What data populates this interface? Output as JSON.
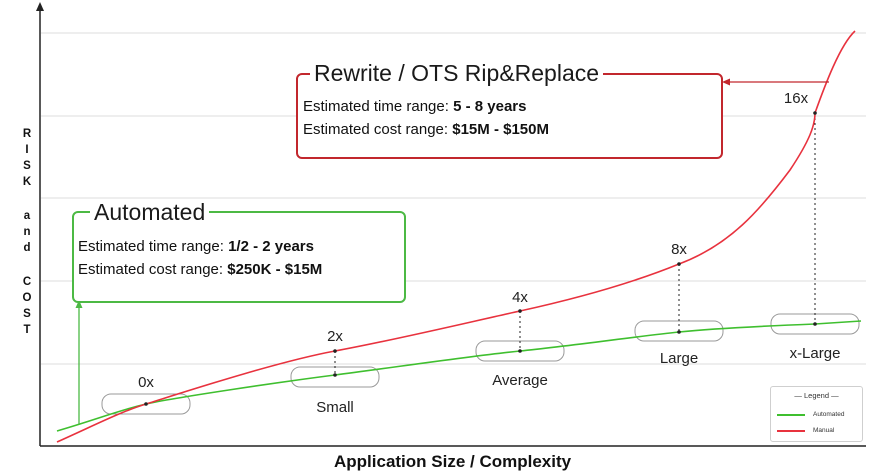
{
  "chart_data": {
    "type": "line",
    "xlabel": "Application Size / Complexity",
    "ylabel": "RISK and COST",
    "ylabel_words": [
      "RISK",
      "and",
      "COST"
    ],
    "categories": [
      "",
      "Small",
      "Average",
      "Large",
      "x-Large"
    ],
    "multipliers": [
      "0x",
      "2x",
      "4x",
      "8x",
      "16x"
    ],
    "series": [
      {
        "name": "Automated",
        "color": "#3fbf2f"
      },
      {
        "name": "Manual",
        "color": "#e8323e"
      }
    ],
    "legend": {
      "title": "— Legend —",
      "placement": "bottom-right"
    },
    "grid": true
  },
  "manual_box": {
    "title": "Rewrite / OTS Rip&Replace",
    "time_label": "Estimated time range: ",
    "time_value": "5 - 8 years",
    "cost_label": "Estimated cost range: ",
    "cost_value": "$15M - $150M",
    "border_color": "#c2272d"
  },
  "automated_box": {
    "title": "Automated",
    "time_label": "Estimated time range: ",
    "time_value": "1/2 - 2 years",
    "cost_label": "Estimated cost range: ",
    "cost_value": "$250K - $15M",
    "border_color": "#4cb944"
  }
}
